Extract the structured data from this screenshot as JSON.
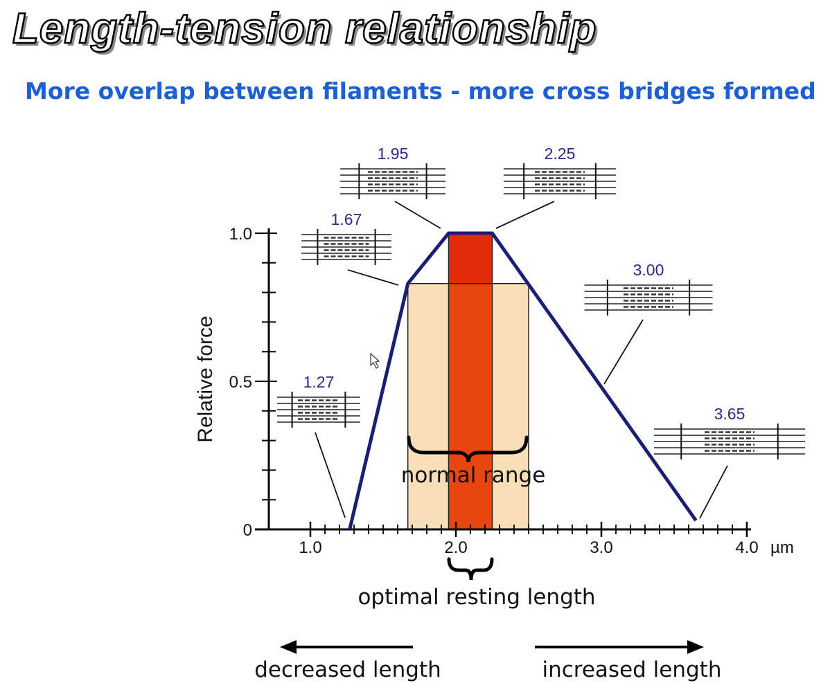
{
  "title": "Length-tension relationship",
  "subtitle": "More overlap between filaments - more cross bridges formed",
  "colors": {
    "title_fill": "#ffffff",
    "subtitle": "#1f5fd6",
    "curve": "#1b1f74",
    "normal_range_fill": "#f9dfb8",
    "optimal_fill": "#e8460e",
    "plateau_fill": "#e22b0c",
    "sarcomere_label": "#2b2b86"
  },
  "chart_data": {
    "type": "line",
    "ylabel": "Relative force",
    "x_unit": "µm",
    "xlim": [
      1.0,
      4.0
    ],
    "ylim": [
      0,
      1.0
    ],
    "x_ticks": [
      {
        "value": 1.0,
        "label": "1.0"
      },
      {
        "value": 2.0,
        "label": "2.0"
      },
      {
        "value": 3.0,
        "label": "3.0"
      },
      {
        "value": 4.0,
        "label": "4.0"
      }
    ],
    "y_ticks": [
      {
        "value": 0,
        "label": "0"
      },
      {
        "value": 0.5,
        "label": "0.5"
      },
      {
        "value": 1.0,
        "label": "1.0"
      }
    ],
    "series": [
      {
        "x": [
          1.27,
          1.67,
          1.95,
          2.25,
          3.65
        ],
        "y": [
          0,
          0.83,
          1.0,
          1.0,
          0.03
        ]
      }
    ],
    "sarcomere_lengths": [
      {
        "label": "1.27",
        "x": 1.27,
        "y": 0.0
      },
      {
        "label": "1.67",
        "x": 1.67,
        "y": 0.83
      },
      {
        "label": "1.95",
        "x": 1.95,
        "y": 1.0
      },
      {
        "label": "2.25",
        "x": 2.25,
        "y": 1.0
      },
      {
        "label": "3.00",
        "x": 3.0,
        "y": 0.49
      },
      {
        "label": "3.65",
        "x": 3.65,
        "y": 0.03
      }
    ],
    "regions": [
      {
        "name": "normal range",
        "x": [
          1.67,
          2.5
        ],
        "y_top": 0.83
      },
      {
        "name": "optimal resting length",
        "x": [
          1.95,
          2.25
        ],
        "y_top": 1.0
      }
    ],
    "annotations": {
      "normal_range": "normal range",
      "optimal": "optimal resting length",
      "decreased": "decreased length",
      "increased": "increased length"
    }
  }
}
